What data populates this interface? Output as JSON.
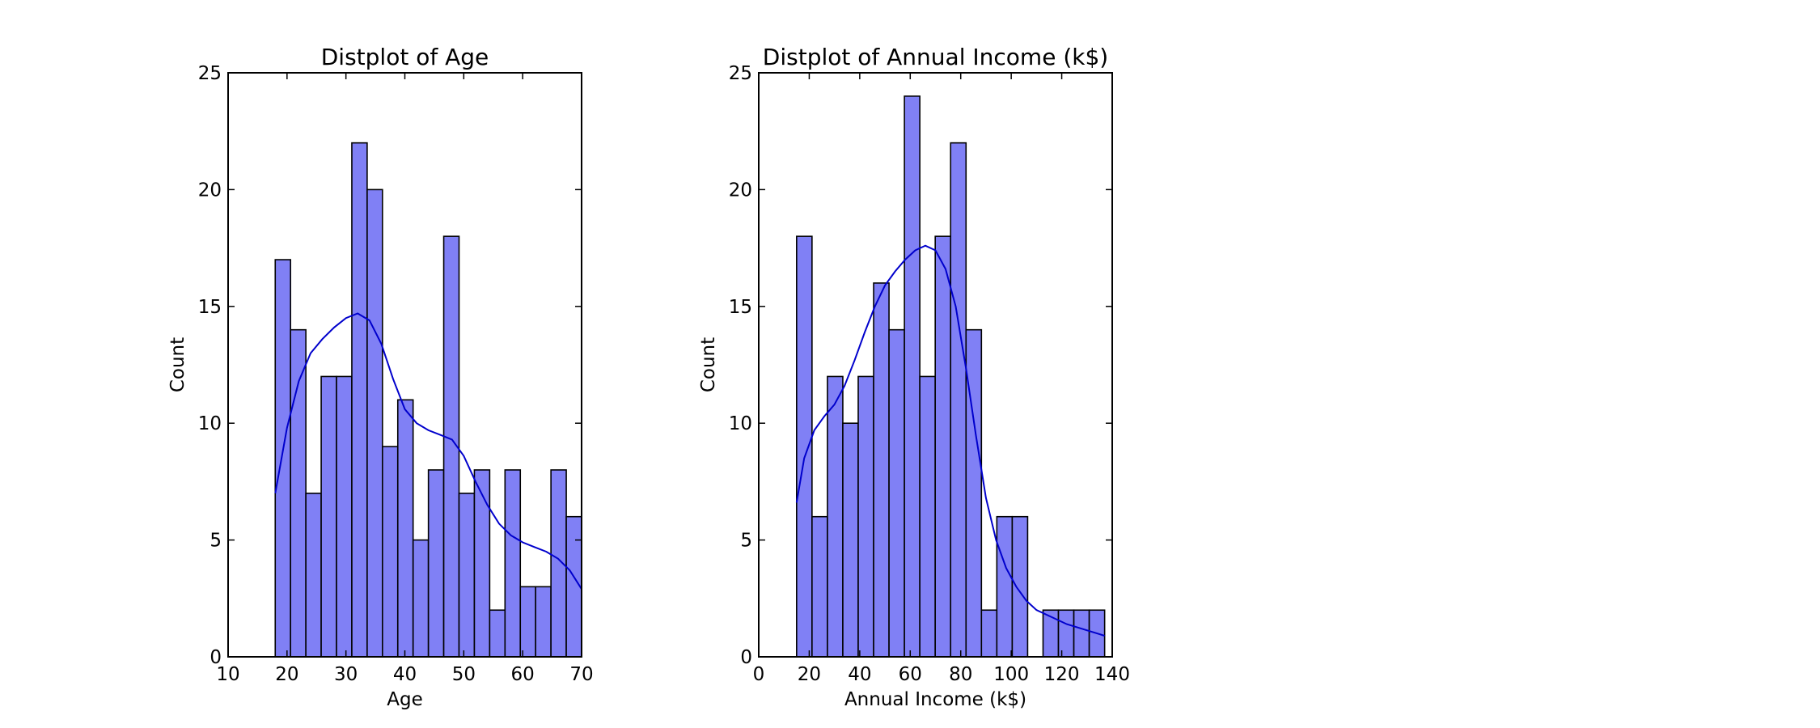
{
  "chart_data": [
    {
      "type": "bar",
      "title": "Distplot of Age",
      "xlabel": "Age",
      "ylabel": "Count",
      "xlim": [
        10,
        70
      ],
      "ylim": [
        0,
        25
      ],
      "xticks": [
        "10",
        "20",
        "30",
        "40",
        "50",
        "60",
        "70"
      ],
      "yticks": [
        "0",
        "5",
        "10",
        "15",
        "20",
        "25"
      ],
      "grid": false,
      "bin_start": 18,
      "bin_width": 2.6,
      "values": [
        17,
        14,
        7,
        12,
        12,
        22,
        20,
        9,
        11,
        5,
        8,
        18,
        7,
        8,
        2,
        8,
        3,
        3,
        8,
        6
      ],
      "kde": [
        [
          18,
          7
        ],
        [
          20,
          9.8
        ],
        [
          22,
          11.8
        ],
        [
          24,
          13.0
        ],
        [
          26,
          13.6
        ],
        [
          28,
          14.1
        ],
        [
          30,
          14.5
        ],
        [
          32,
          14.7
        ],
        [
          34,
          14.4
        ],
        [
          36,
          13.4
        ],
        [
          38,
          11.9
        ],
        [
          40,
          10.6
        ],
        [
          42,
          10.0
        ],
        [
          44,
          9.7
        ],
        [
          46,
          9.5
        ],
        [
          48,
          9.3
        ],
        [
          50,
          8.6
        ],
        [
          52,
          7.5
        ],
        [
          54,
          6.5
        ],
        [
          56,
          5.7
        ],
        [
          58,
          5.2
        ],
        [
          60,
          4.9
        ],
        [
          62,
          4.7
        ],
        [
          64,
          4.5
        ],
        [
          66,
          4.2
        ],
        [
          68,
          3.7
        ],
        [
          70,
          2.9
        ]
      ],
      "bar_color": "#8080f5",
      "kde_color": "#0000cc"
    },
    {
      "type": "bar",
      "title": "Distplot of Annual Income (k$)",
      "xlabel": "Annual Income (k$)",
      "ylabel": "Count",
      "xlim": [
        0,
        140
      ],
      "ylim": [
        0,
        25
      ],
      "xticks": [
        "0",
        "20",
        "40",
        "60",
        "80",
        "100",
        "120",
        "140"
      ],
      "yticks": [
        "0",
        "5",
        "10",
        "15",
        "20",
        "25"
      ],
      "grid": false,
      "bin_start": 15,
      "bin_width": 6.1,
      "values": [
        18,
        6,
        12,
        10,
        12,
        16,
        14,
        24,
        12,
        18,
        22,
        14,
        2,
        6,
        6,
        0,
        2,
        2,
        2,
        2
      ],
      "kde": [
        [
          15,
          6.6
        ],
        [
          18,
          8.5
        ],
        [
          22,
          9.7
        ],
        [
          26,
          10.3
        ],
        [
          30,
          10.8
        ],
        [
          34,
          11.6
        ],
        [
          38,
          12.7
        ],
        [
          42,
          13.9
        ],
        [
          46,
          15.0
        ],
        [
          50,
          15.9
        ],
        [
          54,
          16.5
        ],
        [
          58,
          17.0
        ],
        [
          62,
          17.4
        ],
        [
          66,
          17.6
        ],
        [
          70,
          17.4
        ],
        [
          74,
          16.6
        ],
        [
          78,
          15.0
        ],
        [
          82,
          12.4
        ],
        [
          86,
          9.5
        ],
        [
          90,
          6.8
        ],
        [
          94,
          5.0
        ],
        [
          98,
          3.8
        ],
        [
          102,
          3.0
        ],
        [
          106,
          2.4
        ],
        [
          110,
          2.0
        ],
        [
          116,
          1.7
        ],
        [
          122,
          1.4
        ],
        [
          128,
          1.2
        ],
        [
          134,
          1.0
        ],
        [
          137,
          0.9
        ]
      ],
      "bar_color": "#8080f5",
      "kde_color": "#0000cc"
    }
  ]
}
